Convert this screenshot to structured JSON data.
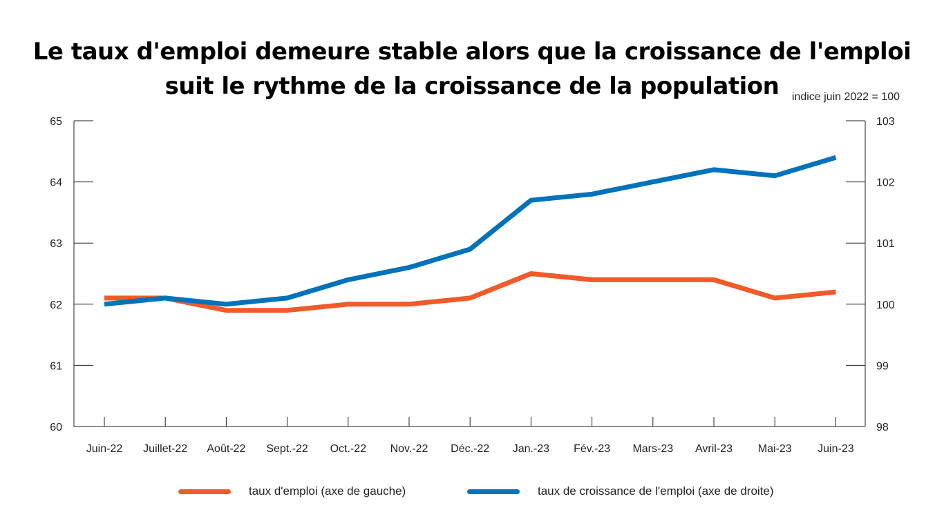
{
  "chart_data": {
    "type": "line",
    "title_lines": [
      "Le taux d'emploi demeure stable alors que la croissance de l'emploi",
      "suit le rythme de la croissance de la population"
    ],
    "right_axis_note": "indice juin 2022 = 100",
    "categories": [
      "Juin-22",
      "Juillet-22",
      "Août-22",
      "Sept.-22",
      "Oct.-22",
      "Nov.-22",
      "Déc.-22",
      "Jan.-23",
      "Fév.-23",
      "Mars-23",
      "Avril-23",
      "Mai-23",
      "Juin-23"
    ],
    "y_left": {
      "min": 60,
      "max": 65,
      "ticks": [
        60,
        61,
        62,
        63,
        64,
        65
      ]
    },
    "y_right": {
      "min": 98,
      "max": 103,
      "ticks": [
        98,
        99,
        100,
        101,
        102,
        103
      ]
    },
    "series": [
      {
        "name": "taux d'emploi (axe de gauche)",
        "axis": "left",
        "color": "#f15a29",
        "values": [
          62.1,
          62.1,
          61.9,
          61.9,
          62.0,
          62.0,
          62.1,
          62.5,
          62.4,
          62.4,
          62.4,
          62.1,
          62.2
        ]
      },
      {
        "name": "taux de croissance de l'emploi (axe de droite)",
        "axis": "right",
        "color": "#0072bc",
        "values": [
          100.0,
          100.1,
          100.0,
          100.1,
          100.4,
          100.6,
          100.9,
          101.7,
          101.8,
          102.0,
          102.2,
          102.1,
          102.4
        ]
      }
    ],
    "grid": false,
    "legend_position": "bottom"
  }
}
